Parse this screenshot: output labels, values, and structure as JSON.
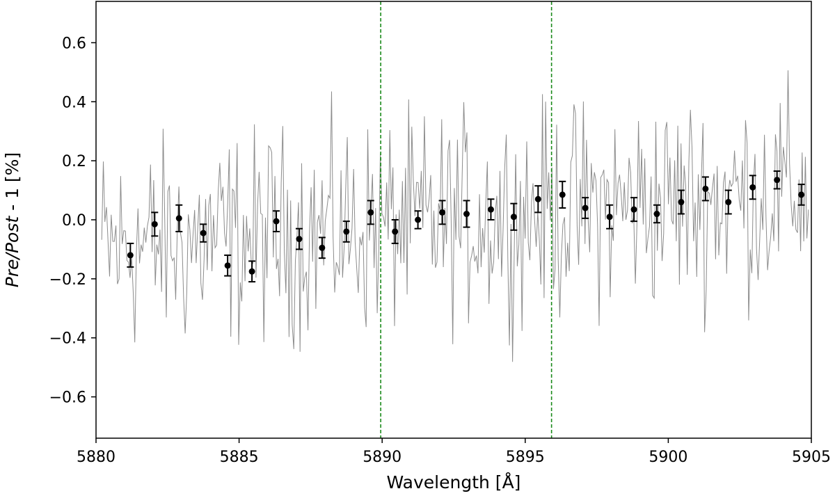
{
  "chart_data": {
    "type": "line",
    "xlabel": {
      "prefix": "Wavelength [",
      "unit": "Å",
      "suffix": "]"
    },
    "ylabel": {
      "italic_part": "Pre/Post",
      "rest": " - 1 [%]"
    },
    "xlim": [
      5880,
      5905
    ],
    "ylim": [
      -0.74,
      0.74
    ],
    "x_ticks": [
      5880,
      5885,
      5890,
      5895,
      5900,
      5905
    ],
    "x_tick_labels": [
      "5880",
      "5885",
      "5890",
      "5895",
      "5900",
      "5905"
    ],
    "y_ticks": [
      -0.6,
      -0.4,
      -0.2,
      0.0,
      0.2,
      0.4,
      0.6
    ],
    "y_tick_labels": [
      "−0.6",
      "−0.4",
      "−0.2",
      "0.0",
      "0.2",
      "0.4",
      "0.6"
    ],
    "grid": false,
    "colors": {
      "spectrum": "#8c8c8c",
      "points": "#000000",
      "markers": "#1a8a1a"
    },
    "vlines": [
      {
        "x": 5889.95,
        "color": "#1a8a1a",
        "style": "dashed"
      },
      {
        "x": 5895.92,
        "color": "#1a8a1a",
        "style": "dashed"
      }
    ],
    "binned_points": {
      "x": [
        5881.2,
        5882.05,
        5882.9,
        5883.75,
        5884.6,
        5885.45,
        5886.3,
        5887.1,
        5887.9,
        5888.75,
        5889.6,
        5890.45,
        5891.25,
        5892.1,
        5892.95,
        5893.8,
        5894.6,
        5895.45,
        5896.3,
        5897.1,
        5897.95,
        5898.8,
        5899.6,
        5900.45,
        5901.3,
        5902.1,
        5902.95,
        5903.8,
        5904.65
      ],
      "y": [
        -0.12,
        -0.015,
        0.005,
        -0.045,
        -0.155,
        -0.175,
        -0.005,
        -0.065,
        -0.095,
        -0.04,
        0.025,
        -0.04,
        0.0,
        0.025,
        0.02,
        0.035,
        0.01,
        0.07,
        0.085,
        0.04,
        0.01,
        0.035,
        0.02,
        0.06,
        0.105,
        0.06,
        0.11,
        0.135,
        0.085
      ],
      "yerr": [
        0.04,
        0.04,
        0.045,
        0.03,
        0.035,
        0.035,
        0.035,
        0.035,
        0.035,
        0.035,
        0.04,
        0.04,
        0.03,
        0.04,
        0.045,
        0.035,
        0.045,
        0.045,
        0.045,
        0.035,
        0.04,
        0.04,
        0.03,
        0.04,
        0.04,
        0.04,
        0.04,
        0.03,
        0.035
      ]
    },
    "spectrum": {
      "x_start": 5880.2,
      "x_end": 5904.9,
      "points": 450,
      "trend_start": -0.1,
      "trend_end": 0.1,
      "noise_amplitude": 0.25
    }
  }
}
